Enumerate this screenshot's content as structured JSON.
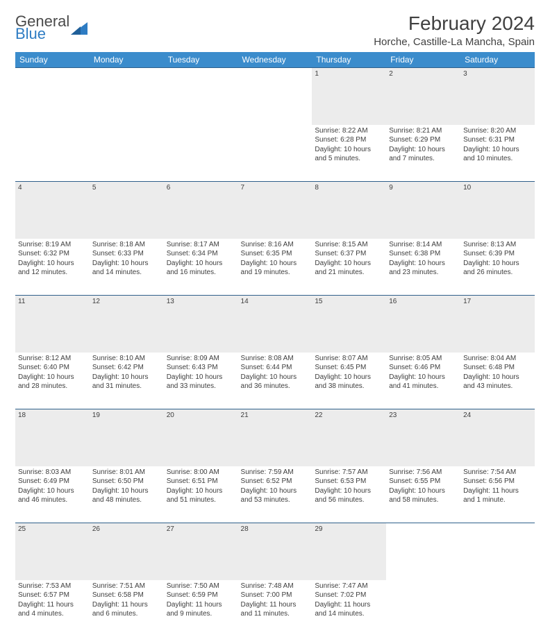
{
  "logo": {
    "text_top": "General",
    "text_bottom": "Blue"
  },
  "title": "February 2024",
  "location": "Horche, Castille-La Mancha, Spain",
  "colors": {
    "header_bg": "#3b8ccc",
    "header_text": "#ffffff",
    "daynum_bg": "#ececec",
    "border_top": "#2e5f8a",
    "body_text": "#3d3d3d",
    "title_text": "#404040",
    "logo_gray": "#5a5a5a",
    "logo_blue": "#2e7cc3"
  },
  "weekdays": [
    "Sunday",
    "Monday",
    "Tuesday",
    "Wednesday",
    "Thursday",
    "Friday",
    "Saturday"
  ],
  "weeks": [
    {
      "nums": [
        "",
        "",
        "",
        "",
        "1",
        "2",
        "3"
      ],
      "cells": [
        null,
        null,
        null,
        null,
        {
          "sunrise": "Sunrise: 8:22 AM",
          "sunset": "Sunset: 6:28 PM",
          "daylight": "Daylight: 10 hours and 5 minutes."
        },
        {
          "sunrise": "Sunrise: 8:21 AM",
          "sunset": "Sunset: 6:29 PM",
          "daylight": "Daylight: 10 hours and 7 minutes."
        },
        {
          "sunrise": "Sunrise: 8:20 AM",
          "sunset": "Sunset: 6:31 PM",
          "daylight": "Daylight: 10 hours and 10 minutes."
        }
      ]
    },
    {
      "nums": [
        "4",
        "5",
        "6",
        "7",
        "8",
        "9",
        "10"
      ],
      "cells": [
        {
          "sunrise": "Sunrise: 8:19 AM",
          "sunset": "Sunset: 6:32 PM",
          "daylight": "Daylight: 10 hours and 12 minutes."
        },
        {
          "sunrise": "Sunrise: 8:18 AM",
          "sunset": "Sunset: 6:33 PM",
          "daylight": "Daylight: 10 hours and 14 minutes."
        },
        {
          "sunrise": "Sunrise: 8:17 AM",
          "sunset": "Sunset: 6:34 PM",
          "daylight": "Daylight: 10 hours and 16 minutes."
        },
        {
          "sunrise": "Sunrise: 8:16 AM",
          "sunset": "Sunset: 6:35 PM",
          "daylight": "Daylight: 10 hours and 19 minutes."
        },
        {
          "sunrise": "Sunrise: 8:15 AM",
          "sunset": "Sunset: 6:37 PM",
          "daylight": "Daylight: 10 hours and 21 minutes."
        },
        {
          "sunrise": "Sunrise: 8:14 AM",
          "sunset": "Sunset: 6:38 PM",
          "daylight": "Daylight: 10 hours and 23 minutes."
        },
        {
          "sunrise": "Sunrise: 8:13 AM",
          "sunset": "Sunset: 6:39 PM",
          "daylight": "Daylight: 10 hours and 26 minutes."
        }
      ]
    },
    {
      "nums": [
        "11",
        "12",
        "13",
        "14",
        "15",
        "16",
        "17"
      ],
      "cells": [
        {
          "sunrise": "Sunrise: 8:12 AM",
          "sunset": "Sunset: 6:40 PM",
          "daylight": "Daylight: 10 hours and 28 minutes."
        },
        {
          "sunrise": "Sunrise: 8:10 AM",
          "sunset": "Sunset: 6:42 PM",
          "daylight": "Daylight: 10 hours and 31 minutes."
        },
        {
          "sunrise": "Sunrise: 8:09 AM",
          "sunset": "Sunset: 6:43 PM",
          "daylight": "Daylight: 10 hours and 33 minutes."
        },
        {
          "sunrise": "Sunrise: 8:08 AM",
          "sunset": "Sunset: 6:44 PM",
          "daylight": "Daylight: 10 hours and 36 minutes."
        },
        {
          "sunrise": "Sunrise: 8:07 AM",
          "sunset": "Sunset: 6:45 PM",
          "daylight": "Daylight: 10 hours and 38 minutes."
        },
        {
          "sunrise": "Sunrise: 8:05 AM",
          "sunset": "Sunset: 6:46 PM",
          "daylight": "Daylight: 10 hours and 41 minutes."
        },
        {
          "sunrise": "Sunrise: 8:04 AM",
          "sunset": "Sunset: 6:48 PM",
          "daylight": "Daylight: 10 hours and 43 minutes."
        }
      ]
    },
    {
      "nums": [
        "18",
        "19",
        "20",
        "21",
        "22",
        "23",
        "24"
      ],
      "cells": [
        {
          "sunrise": "Sunrise: 8:03 AM",
          "sunset": "Sunset: 6:49 PM",
          "daylight": "Daylight: 10 hours and 46 minutes."
        },
        {
          "sunrise": "Sunrise: 8:01 AM",
          "sunset": "Sunset: 6:50 PM",
          "daylight": "Daylight: 10 hours and 48 minutes."
        },
        {
          "sunrise": "Sunrise: 8:00 AM",
          "sunset": "Sunset: 6:51 PM",
          "daylight": "Daylight: 10 hours and 51 minutes."
        },
        {
          "sunrise": "Sunrise: 7:59 AM",
          "sunset": "Sunset: 6:52 PM",
          "daylight": "Daylight: 10 hours and 53 minutes."
        },
        {
          "sunrise": "Sunrise: 7:57 AM",
          "sunset": "Sunset: 6:53 PM",
          "daylight": "Daylight: 10 hours and 56 minutes."
        },
        {
          "sunrise": "Sunrise: 7:56 AM",
          "sunset": "Sunset: 6:55 PM",
          "daylight": "Daylight: 10 hours and 58 minutes."
        },
        {
          "sunrise": "Sunrise: 7:54 AM",
          "sunset": "Sunset: 6:56 PM",
          "daylight": "Daylight: 11 hours and 1 minute."
        }
      ]
    },
    {
      "nums": [
        "25",
        "26",
        "27",
        "28",
        "29",
        "",
        ""
      ],
      "cells": [
        {
          "sunrise": "Sunrise: 7:53 AM",
          "sunset": "Sunset: 6:57 PM",
          "daylight": "Daylight: 11 hours and 4 minutes."
        },
        {
          "sunrise": "Sunrise: 7:51 AM",
          "sunset": "Sunset: 6:58 PM",
          "daylight": "Daylight: 11 hours and 6 minutes."
        },
        {
          "sunrise": "Sunrise: 7:50 AM",
          "sunset": "Sunset: 6:59 PM",
          "daylight": "Daylight: 11 hours and 9 minutes."
        },
        {
          "sunrise": "Sunrise: 7:48 AM",
          "sunset": "Sunset: 7:00 PM",
          "daylight": "Daylight: 11 hours and 11 minutes."
        },
        {
          "sunrise": "Sunrise: 7:47 AM",
          "sunset": "Sunset: 7:02 PM",
          "daylight": "Daylight: 11 hours and 14 minutes."
        },
        null,
        null
      ]
    }
  ]
}
